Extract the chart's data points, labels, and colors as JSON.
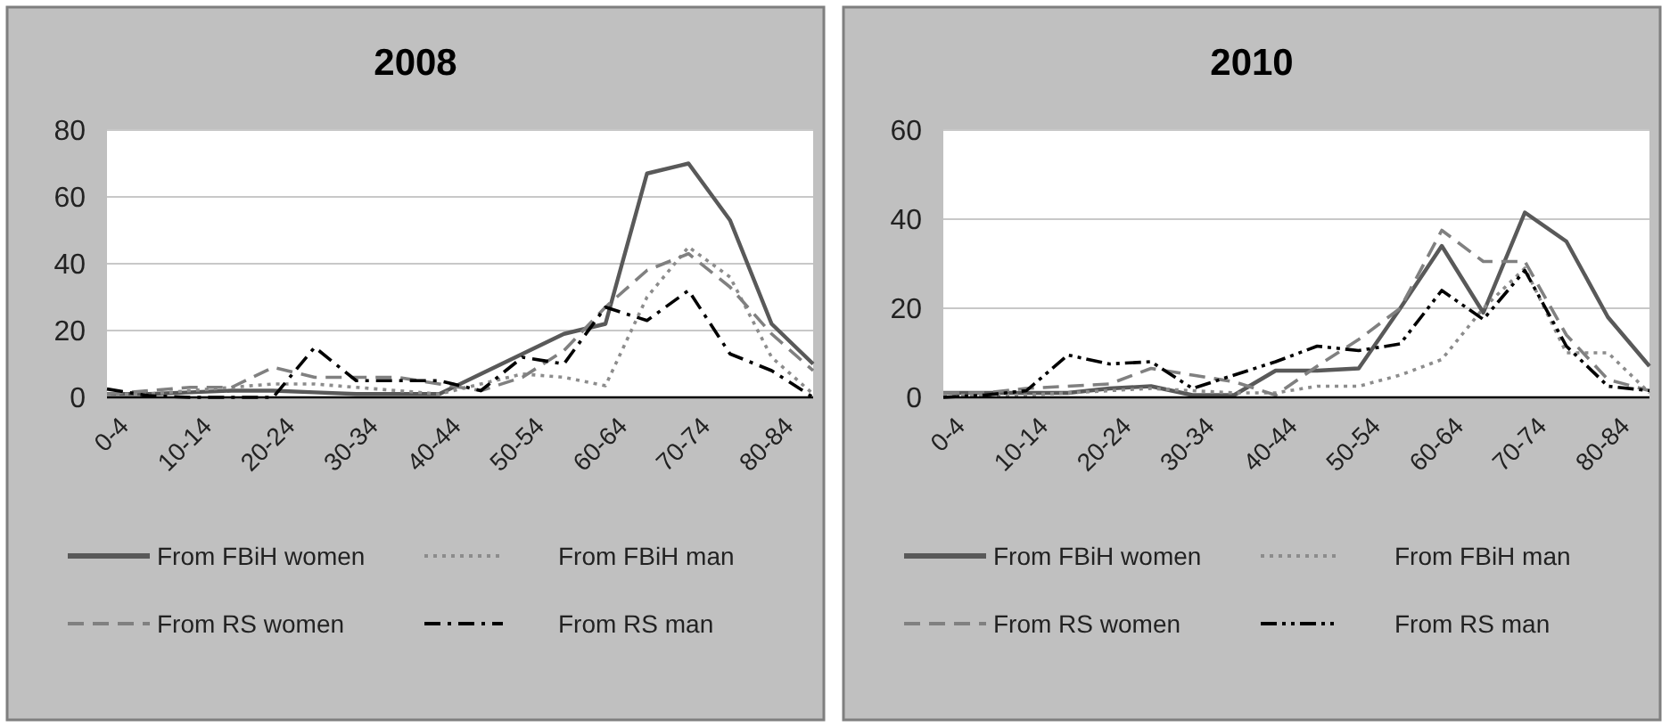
{
  "chart_data": [
    {
      "type": "line",
      "title": "2008",
      "categories": [
        "0-4",
        null,
        "10-14",
        null,
        "20-24",
        null,
        "30-34",
        null,
        "40-44",
        null,
        "50-54",
        null,
        "60-64",
        null,
        "70-74",
        null,
        "80-84",
        null
      ],
      "ylim": [
        0,
        80
      ],
      "yticks": [
        0,
        20,
        40,
        60,
        80
      ],
      "grid": "y",
      "legend": "bottom",
      "series": [
        {
          "name": "From FBiH women",
          "color": "#595959",
          "line_style": "solid",
          "values": [
            1,
            1,
            1.5,
            2,
            2,
            1.5,
            1,
            1,
            1,
            7,
            13,
            19,
            22,
            67,
            70,
            53,
            22,
            10
          ]
        },
        {
          "name": "From FBiH man",
          "color": "#8c8c8c",
          "line_style": "dotted",
          "values": [
            1,
            1,
            2,
            3,
            4,
            4,
            3,
            2,
            1,
            4,
            7,
            6,
            3.5,
            30,
            45,
            36,
            12,
            1
          ]
        },
        {
          "name": "From RS women",
          "color": "#808080",
          "line_style": "dashed",
          "values": [
            1,
            2,
            3,
            3,
            9,
            6,
            6,
            6,
            4,
            2,
            6,
            14,
            27,
            38,
            43,
            33,
            19,
            8
          ]
        },
        {
          "name": "From RS man",
          "color": "#000000",
          "line_style": "dashdot",
          "values": [
            2.5,
            0.5,
            0,
            0,
            0,
            15,
            5,
            5,
            5,
            2,
            12,
            10,
            27,
            23,
            32,
            13,
            8,
            0
          ]
        }
      ]
    },
    {
      "type": "line",
      "title": "2010",
      "categories": [
        "0-4",
        null,
        "10-14",
        null,
        "20-24",
        null,
        "30-34",
        null,
        "40-44",
        null,
        "50-54",
        null,
        "60-64",
        null,
        "70-74",
        null,
        "80-84",
        null
      ],
      "ylim": [
        0,
        60
      ],
      "yticks": [
        0,
        20,
        40,
        60
      ],
      "grid": "y",
      "legend": "bottom",
      "series": [
        {
          "name": "From FBiH women",
          "color": "#595959",
          "line_style": "solid",
          "values": [
            1,
            1,
            1,
            1,
            2,
            2.5,
            0.5,
            0.5,
            6,
            6,
            6.5,
            20,
            34,
            19,
            41.5,
            35,
            18,
            7
          ]
        },
        {
          "name": "From FBiH man",
          "color": "#8c8c8c",
          "line_style": "dotted",
          "values": [
            0.5,
            0.5,
            0.5,
            1,
            1.5,
            2,
            1.5,
            1,
            1,
            2.5,
            2.5,
            5,
            8.5,
            20,
            29,
            10,
            10,
            1
          ]
        },
        {
          "name": "From RS women",
          "color": "#808080",
          "line_style": "dashed",
          "values": [
            1,
            1,
            2,
            2.5,
            3,
            6.5,
            5,
            3.5,
            0.5,
            7,
            13,
            20,
            37.5,
            30.5,
            30.5,
            14,
            4,
            1.5
          ]
        },
        {
          "name": "From RS man",
          "color": "#000000",
          "line_style": "dashdotdot",
          "values": [
            0,
            0.5,
            1.5,
            9.5,
            7.5,
            8,
            2,
            5,
            8,
            11.5,
            10.5,
            12,
            24,
            17.5,
            28.5,
            11.5,
            2.5,
            1.5
          ]
        }
      ]
    }
  ]
}
